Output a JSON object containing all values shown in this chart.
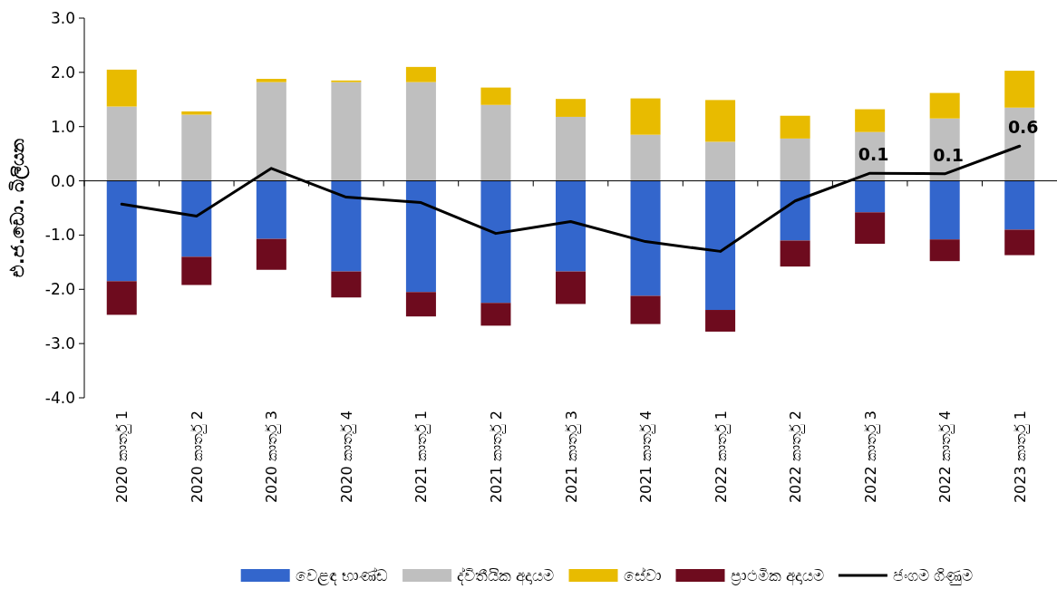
{
  "chart_data": {
    "type": "bar",
    "stacked": true,
    "ylabel": "එ.ජ.ඩො. බිලියන",
    "ylim": [
      -4,
      3
    ],
    "yticks": [
      {
        "value": -4,
        "label": "-4.0"
      },
      {
        "value": -3,
        "label": "-3.0"
      },
      {
        "value": -2,
        "label": "-2.0"
      },
      {
        "value": -1,
        "label": "-1.0"
      },
      {
        "value": 0,
        "label": "0.0"
      },
      {
        "value": 1,
        "label": "1.0"
      },
      {
        "value": 2,
        "label": "2.0"
      },
      {
        "value": 3,
        "label": "3.0"
      }
    ],
    "categories": [
      "2020 කාර්තු 1",
      "2020 කාර්තු 2",
      "2020 කාර්තු 3",
      "2020 කාර්තු 4",
      "2021 කාර්තු 1",
      "2021 කාර්තු 2",
      "2021 කාර්තු 3",
      "2021 කාර්තු 4",
      "2022 කාර්තු 1",
      "2022 කාර්තු 2",
      "2022 කාර්තු 3",
      "2022 කාර්තු 4",
      "2023 කාර්තු 1"
    ],
    "legend": "bottom",
    "series": [
      {
        "name": "වෙළඳ භාණ්ඩ",
        "color": "#3366cc",
        "values": [
          -1.85,
          -1.4,
          -1.07,
          -1.67,
          -2.05,
          -2.25,
          -1.67,
          -2.12,
          -2.38,
          -1.1,
          -0.58,
          -1.08,
          -0.9
        ]
      },
      {
        "name": "ද්විතීයික අදායම",
        "color": "#bfbfbf",
        "values": [
          1.37,
          1.22,
          1.82,
          1.82,
          1.82,
          1.4,
          1.18,
          0.85,
          0.72,
          0.78,
          0.9,
          1.15,
          1.35
        ]
      },
      {
        "name": "සේවා",
        "color": "#e8bb00",
        "values": [
          0.68,
          0.06,
          0.06,
          0.03,
          0.28,
          0.32,
          0.33,
          0.67,
          0.77,
          0.42,
          0.42,
          0.47,
          0.68
        ]
      },
      {
        "name": "ප්‍රාථමික අදායම",
        "color": "#6e0b1e",
        "values": [
          -0.62,
          -0.52,
          -0.57,
          -0.48,
          -0.45,
          -0.42,
          -0.6,
          -0.52,
          -0.4,
          -0.48,
          -0.58,
          -0.4,
          -0.47
        ]
      },
      {
        "name": "ජංගම ගිණුම",
        "type": "line",
        "color": "#000000",
        "values": [
          -0.43,
          -0.65,
          0.23,
          -0.3,
          -0.4,
          -0.97,
          -0.75,
          -1.12,
          -1.3,
          -0.37,
          0.14,
          0.13,
          0.64
        ],
        "value_labels": [
          null,
          null,
          null,
          null,
          null,
          null,
          null,
          null,
          null,
          null,
          "0.1",
          "0.1",
          "0.6"
        ]
      }
    ]
  }
}
